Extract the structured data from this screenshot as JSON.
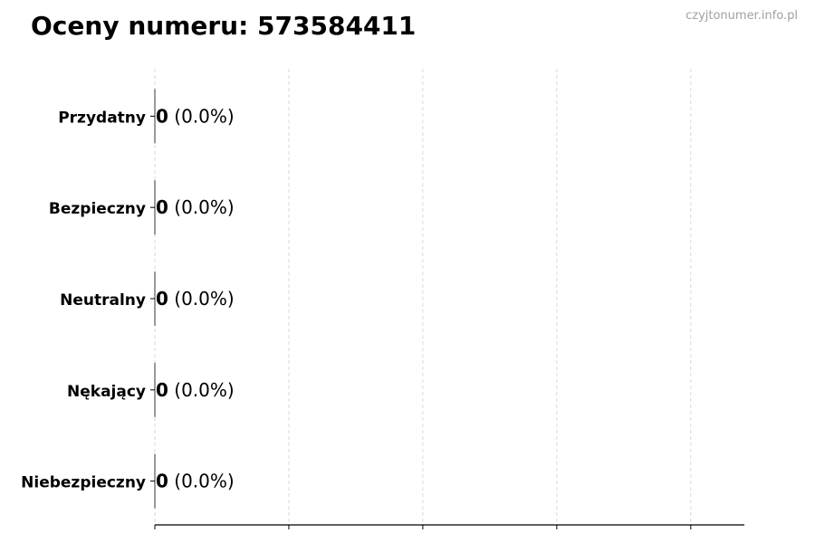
{
  "chart_data": {
    "type": "bar",
    "orientation": "horizontal",
    "title": "Oceny numeru: 573584411",
    "watermark": "czyjtonumer.info.pl",
    "categories": [
      "Przydatny",
      "Bezpieczny",
      "Neutralny",
      "Nękający",
      "Niebezpieczny"
    ],
    "values": [
      0,
      0,
      0,
      0,
      0
    ],
    "data_labels": [
      {
        "count": "0",
        "percent": "(0.0%)"
      },
      {
        "count": "0",
        "percent": "(0.0%)"
      },
      {
        "count": "0",
        "percent": "(0.0%)"
      },
      {
        "count": "0",
        "percent": "(0.0%)"
      },
      {
        "count": "0",
        "percent": "(0.0%)"
      }
    ],
    "xlim": [
      0,
      4.4
    ],
    "x_tick_values": [
      0,
      1,
      2,
      3,
      4
    ],
    "x_tick_labels_shown": false,
    "grid": "x dashed",
    "colors": {
      "grid": "#d9d9d9",
      "axis": "#000000",
      "watermark": "#a0a0a0"
    }
  }
}
